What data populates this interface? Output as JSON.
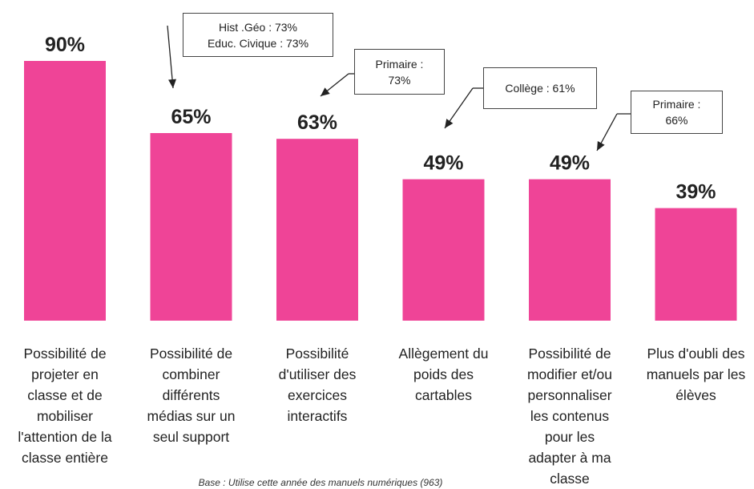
{
  "chart_data": {
    "type": "bar",
    "categories": [
      "Possibilité de projeter en classe et de mobiliser l'attention de la classe entière",
      "Possibilité de combiner différents médias sur un seul support",
      "Possibilité d'utiliser des exercices interactifs",
      "Allègement du poids des cartables",
      "Possibilité de modifier et/ou personnaliser les contenus pour les adapter à ma classe",
      "Plus d'oubli des manuels par les élèves"
    ],
    "category_lines": [
      [
        "Possibilité de",
        "projeter en",
        "classe et de",
        "mobiliser",
        "l'attention de la",
        "classe entière"
      ],
      [
        "Possibilité de",
        "combiner",
        "différents",
        "médias sur un",
        "seul support"
      ],
      [
        "Possibilité",
        "d'utiliser des",
        "exercices",
        "interactifs"
      ],
      [
        "Allègement du",
        "poids des",
        "cartables"
      ],
      [
        "Possibilité de",
        "modifier et/ou",
        "personnaliser",
        "les contenus",
        "pour les",
        "adapter à ma",
        "classe"
      ],
      [
        "Plus d'oubli des",
        "manuels par les",
        "élèves"
      ]
    ],
    "values": [
      90,
      65,
      63,
      49,
      49,
      39
    ],
    "value_labels": [
      "90%",
      "65%",
      "63%",
      "49%",
      "49%",
      "39%"
    ],
    "ylim": [
      0,
      100
    ],
    "grid": false,
    "bar_color": "#ef4497",
    "annotations": [
      {
        "category_index": 1,
        "lines": [
          "Hist .Géo : 73%",
          "Educ. Civique : 73%"
        ]
      },
      {
        "category_index": 2,
        "lines": [
          "Primaire :",
          "73%"
        ]
      },
      {
        "category_index": 3,
        "lines": [
          "Collège : 61%"
        ]
      },
      {
        "category_index": 4,
        "lines": [
          "Primaire :",
          "66%"
        ]
      }
    ]
  },
  "footnote": "Base : Utilise cette année des manuels numériques (963)"
}
